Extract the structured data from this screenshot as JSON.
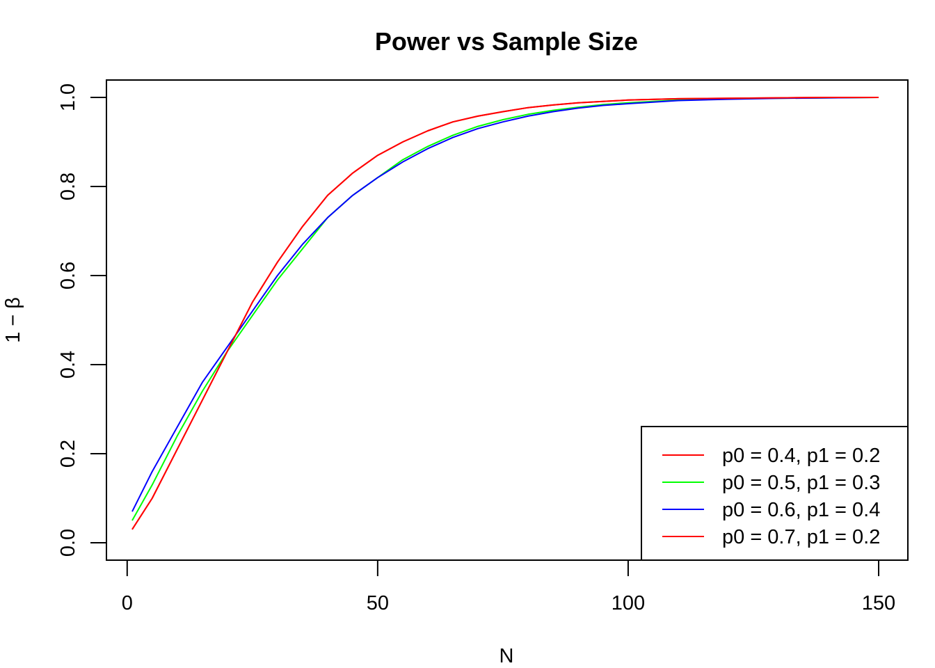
{
  "chart_data": {
    "type": "line",
    "title": "Power vs Sample Size",
    "xlabel": "N",
    "ylabel": "1 − β",
    "xlim": [
      1,
      150
    ],
    "ylim": [
      0,
      1
    ],
    "xticks": [
      0,
      50,
      100,
      150
    ],
    "yticks": [
      0.0,
      0.2,
      0.4,
      0.6,
      0.8,
      1.0
    ],
    "xtick_labels": [
      "0",
      "50",
      "100",
      "150"
    ],
    "ytick_labels": [
      "0.0",
      "0.2",
      "0.4",
      "0.6",
      "0.8",
      "1.0"
    ],
    "grid": false,
    "legend_position": "bottom-right",
    "x": [
      1,
      5,
      10,
      15,
      20,
      25,
      30,
      35,
      40,
      45,
      50,
      55,
      60,
      65,
      70,
      75,
      80,
      85,
      90,
      95,
      100,
      110,
      120,
      130,
      140,
      150
    ],
    "series": [
      {
        "name": "p0 = 0.4, p1 = 0.2",
        "color": "#ff0000",
        "values": [
          0.03,
          0.1,
          0.21,
          0.32,
          0.43,
          0.54,
          0.63,
          0.71,
          0.78,
          0.83,
          0.87,
          0.9,
          0.925,
          0.945,
          0.958,
          0.968,
          0.977,
          0.983,
          0.988,
          0.991,
          0.994,
          0.997,
          0.998,
          0.999,
          1.0,
          1.0
        ]
      },
      {
        "name": "p0 = 0.5, p1 = 0.3",
        "color": "#00ff00",
        "values": [
          0.05,
          0.13,
          0.24,
          0.34,
          0.43,
          0.51,
          0.59,
          0.66,
          0.73,
          0.78,
          0.82,
          0.86,
          0.89,
          0.915,
          0.935,
          0.95,
          0.962,
          0.971,
          0.978,
          0.984,
          0.988,
          0.994,
          0.997,
          0.998,
          0.999,
          1.0
        ]
      },
      {
        "name": "p0 = 0.6, p1 = 0.4",
        "color": "#0000ff",
        "values": [
          0.07,
          0.16,
          0.26,
          0.36,
          0.44,
          0.52,
          0.6,
          0.67,
          0.73,
          0.78,
          0.82,
          0.855,
          0.885,
          0.91,
          0.93,
          0.945,
          0.958,
          0.968,
          0.976,
          0.982,
          0.986,
          0.993,
          0.996,
          0.998,
          0.999,
          1.0
        ]
      },
      {
        "name": "p0 = 0.7, p1 = 0.2",
        "color": "#ff0000",
        "values": [
          0.03,
          0.1,
          0.21,
          0.32,
          0.43,
          0.54,
          0.63,
          0.71,
          0.78,
          0.83,
          0.87,
          0.9,
          0.925,
          0.945,
          0.958,
          0.968,
          0.977,
          0.983,
          0.988,
          0.991,
          0.994,
          0.997,
          0.998,
          0.999,
          1.0,
          1.0
        ]
      }
    ]
  }
}
